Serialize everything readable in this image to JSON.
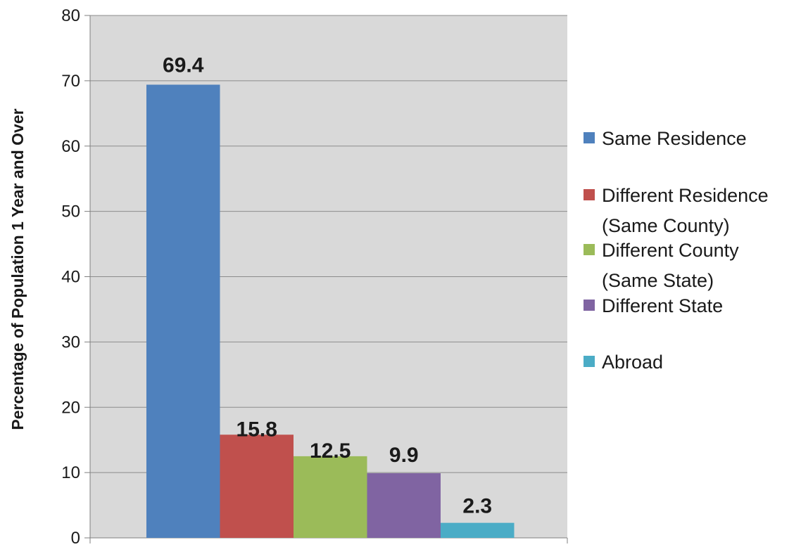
{
  "chart_data": {
    "type": "bar",
    "title": "",
    "xlabel": "",
    "ylabel": "Percentage of Population 1 Year and Over",
    "ylim": [
      0,
      80
    ],
    "yticks": [
      0,
      10,
      20,
      30,
      40,
      50,
      60,
      70,
      80
    ],
    "grid": true,
    "legend_position": "right",
    "series": [
      {
        "name": "Same Residence",
        "legend_lines": [
          "Same Residence"
        ],
        "value": 69.4,
        "label": "69.4",
        "color": "#4f81bd"
      },
      {
        "name": "Different Residence (Same County)",
        "legend_lines": [
          "Different Residence",
          "(Same County)"
        ],
        "value": 15.8,
        "label": "15.8",
        "color": "#c0504d"
      },
      {
        "name": "Different County (Same State)",
        "legend_lines": [
          "Different County",
          "(Same State)"
        ],
        "value": 12.5,
        "label": "12.5",
        "color": "#9bbb59"
      },
      {
        "name": "Different State",
        "legend_lines": [
          "Different State"
        ],
        "value": 9.9,
        "label": "9.9",
        "color": "#8064a2"
      },
      {
        "name": "Abroad",
        "legend_lines": [
          "Abroad"
        ],
        "value": 2.3,
        "label": "2.3",
        "color": "#4bacc6"
      }
    ],
    "plot_background": "#d9d9d9",
    "grid_color": "#8c8c8c"
  }
}
